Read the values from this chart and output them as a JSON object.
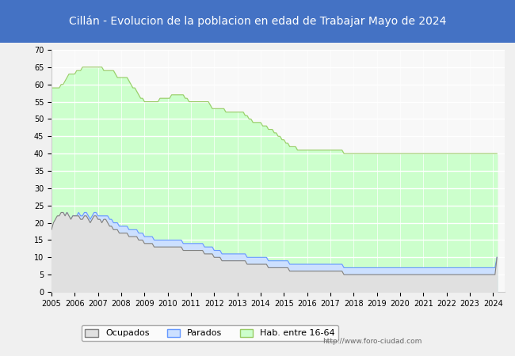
{
  "title": "Cillán - Evolucion de la poblacion en edad de Trabajar Mayo de 2024",
  "title_color": "#ffffff",
  "title_bg_color": "#4472c4",
  "ylabel": "",
  "xlabel": "",
  "ylim": [
    0,
    70
  ],
  "yticks": [
    0,
    5,
    10,
    15,
    20,
    25,
    30,
    35,
    40,
    45,
    50,
    55,
    60,
    65,
    70
  ],
  "x_start_year": 2005,
  "x_end_year": 2024,
  "watermark": "http://www.foro-ciudad.com",
  "legend_labels": [
    "Ocupados",
    "Parados",
    "Hab. entre 16-64"
  ],
  "ocupados_color": "#808080",
  "parados_color": "#6699ff",
  "hab_color": "#99cc66",
  "hab_fill_color": "#ccffcc",
  "ocupados_fill_color": "#e0e0e0",
  "parados_fill_color": "#cce0ff",
  "background_color": "#f0f0f0",
  "plot_bg_color": "#f8f8f8",
  "grid_color": "#ffffff",
  "hab_data": [
    59,
    59,
    59,
    59,
    59,
    60,
    60,
    61,
    62,
    63,
    63,
    63,
    63,
    64,
    64,
    64,
    65,
    65,
    65,
    65,
    65,
    65,
    65,
    65,
    65,
    65,
    65,
    64,
    64,
    64,
    64,
    64,
    64,
    63,
    62,
    62,
    62,
    62,
    62,
    62,
    61,
    60,
    59,
    59,
    58,
    57,
    56,
    56,
    55,
    55,
    55,
    55,
    55,
    55,
    55,
    55,
    56,
    56,
    56,
    56,
    56,
    56,
    57,
    57,
    57,
    57,
    57,
    57,
    57,
    56,
    56,
    55,
    55,
    55,
    55,
    55,
    55,
    55,
    55,
    55,
    55,
    55,
    54,
    53,
    53,
    53,
    53,
    53,
    53,
    53,
    52,
    52,
    52,
    52,
    52,
    52,
    52,
    52,
    52,
    52,
    51,
    51,
    50,
    50,
    49,
    49,
    49,
    49,
    49,
    48,
    48,
    48,
    47,
    47,
    47,
    46,
    46,
    45,
    45,
    44,
    44,
    43,
    43,
    42,
    42,
    42,
    42,
    41,
    41,
    41,
    41,
    41,
    41,
    41,
    41,
    41,
    41,
    41,
    41,
    41,
    41,
    41,
    41,
    41,
    41,
    41,
    41,
    41,
    41,
    41,
    41,
    40,
    40,
    40,
    40,
    40,
    40,
    40,
    40,
    40,
    40,
    40,
    40,
    40,
    40,
    40,
    40,
    40,
    40,
    40,
    40,
    40,
    40,
    40,
    40,
    40,
    40,
    40,
    40,
    40,
    40,
    40,
    40,
    40,
    40,
    40,
    40,
    40,
    40,
    40,
    40,
    40,
    40,
    40,
    40,
    40,
    40,
    40,
    40,
    40,
    40,
    40,
    40,
    40,
    40,
    40,
    40,
    40,
    40,
    40,
    40,
    40,
    40,
    40,
    40,
    40,
    40,
    40,
    40,
    40,
    40,
    40,
    40,
    40,
    40,
    40,
    40,
    40,
    40,
    40,
    40
  ],
  "parados_data": [
    15,
    18,
    19,
    20,
    21,
    22,
    23,
    22,
    23,
    22,
    21,
    22,
    22,
    22,
    23,
    22,
    22,
    23,
    23,
    22,
    21,
    22,
    23,
    23,
    22,
    22,
    22,
    22,
    22,
    22,
    21,
    21,
    20,
    20,
    20,
    19,
    19,
    19,
    19,
    19,
    18,
    18,
    18,
    18,
    18,
    17,
    17,
    17,
    16,
    16,
    16,
    16,
    16,
    15,
    15,
    15,
    15,
    15,
    15,
    15,
    15,
    15,
    15,
    15,
    15,
    15,
    15,
    15,
    14,
    14,
    14,
    14,
    14,
    14,
    14,
    14,
    14,
    14,
    14,
    13,
    13,
    13,
    13,
    13,
    12,
    12,
    12,
    12,
    11,
    11,
    11,
    11,
    11,
    11,
    11,
    11,
    11,
    11,
    11,
    11,
    11,
    10,
    10,
    10,
    10,
    10,
    10,
    10,
    10,
    10,
    10,
    10,
    9,
    9,
    9,
    9,
    9,
    9,
    9,
    9,
    9,
    9,
    9,
    8,
    8,
    8,
    8,
    8,
    8,
    8,
    8,
    8,
    8,
    8,
    8,
    8,
    8,
    8,
    8,
    8,
    8,
    8,
    8,
    8,
    8,
    8,
    8,
    8,
    8,
    8,
    8,
    7,
    7,
    7,
    7,
    7,
    7,
    7,
    7,
    7,
    7,
    7,
    7,
    7,
    7,
    7,
    7,
    7,
    7,
    7,
    7,
    7,
    7,
    7,
    7,
    7,
    7,
    7,
    7,
    7,
    7,
    7,
    7,
    7,
    7,
    7,
    7,
    7,
    7,
    7,
    7,
    7,
    7,
    7,
    7,
    7,
    7,
    7,
    7,
    7,
    7,
    7,
    7,
    7,
    7,
    7,
    7,
    7,
    7,
    7,
    7,
    7,
    7,
    7,
    7,
    7,
    7,
    7,
    7,
    7,
    7,
    7,
    7,
    7,
    7,
    7,
    7,
    7,
    7,
    7,
    10
  ],
  "ocupados_data": [
    18,
    20,
    21,
    22,
    22,
    23,
    23,
    22,
    23,
    22,
    21,
    22,
    22,
    22,
    22,
    21,
    21,
    22,
    22,
    21,
    20,
    21,
    22,
    22,
    21,
    21,
    20,
    21,
    21,
    20,
    19,
    19,
    18,
    18,
    18,
    17,
    17,
    17,
    17,
    17,
    16,
    16,
    16,
    16,
    16,
    15,
    15,
    15,
    14,
    14,
    14,
    14,
    14,
    13,
    13,
    13,
    13,
    13,
    13,
    13,
    13,
    13,
    13,
    13,
    13,
    13,
    13,
    13,
    12,
    12,
    12,
    12,
    12,
    12,
    12,
    12,
    12,
    12,
    12,
    11,
    11,
    11,
    11,
    11,
    10,
    10,
    10,
    10,
    9,
    9,
    9,
    9,
    9,
    9,
    9,
    9,
    9,
    9,
    9,
    9,
    9,
    8,
    8,
    8,
    8,
    8,
    8,
    8,
    8,
    8,
    8,
    8,
    7,
    7,
    7,
    7,
    7,
    7,
    7,
    7,
    7,
    7,
    7,
    6,
    6,
    6,
    6,
    6,
    6,
    6,
    6,
    6,
    6,
    6,
    6,
    6,
    6,
    6,
    6,
    6,
    6,
    6,
    6,
    6,
    6,
    6,
    6,
    6,
    6,
    6,
    6,
    5,
    5,
    5,
    5,
    5,
    5,
    5,
    5,
    5,
    5,
    5,
    5,
    5,
    5,
    5,
    5,
    5,
    5,
    5,
    5,
    5,
    5,
    5,
    5,
    5,
    5,
    5,
    5,
    5,
    5,
    5,
    5,
    5,
    5,
    5,
    5,
    5,
    5,
    5,
    5,
    5,
    5,
    5,
    5,
    5,
    5,
    5,
    5,
    5,
    5,
    5,
    5,
    5,
    5,
    5,
    5,
    5,
    5,
    5,
    5,
    5,
    5,
    5,
    5,
    5,
    5,
    5,
    5,
    5,
    5,
    5,
    5,
    5,
    5,
    5,
    5,
    5,
    5,
    5,
    10
  ]
}
